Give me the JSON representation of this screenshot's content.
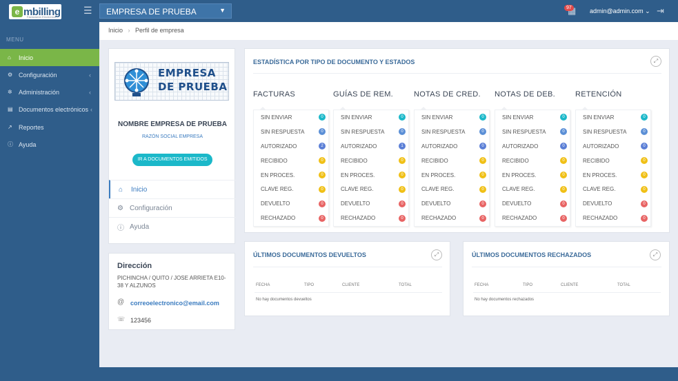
{
  "header": {
    "logo_letter": "e",
    "logo_text": "mbilling",
    "logo_tagline": "Facturación Electrónica",
    "company_select": "EMPRESA DE PRUEBA",
    "notification_count": "97",
    "user_email": "admin@admin.com"
  },
  "sidebar": {
    "menu_label": "MENU",
    "items": [
      {
        "label": "Inicio",
        "icon": "home-icon",
        "active": true
      },
      {
        "label": "Configuración",
        "icon": "cogs-icon"
      },
      {
        "label": "Administración",
        "icon": "gear-icon"
      },
      {
        "label": "Documentos electrónicos",
        "icon": "document-icon"
      },
      {
        "label": "Reportes",
        "icon": "chart-icon"
      },
      {
        "label": "Ayuda",
        "icon": "info-icon"
      }
    ]
  },
  "breadcrumb": {
    "home": "Inicio",
    "current": "Perfil de empresa"
  },
  "profile": {
    "logo_line1": "EMPRESA",
    "logo_line2": "DE PRUEBA",
    "name": "NOMBRE EMPRESA DE PRUEBA",
    "legal_name": "RAZÓN SOCIAL EMPRESA",
    "docs_button": "IR A DOCUMENTOS EMITIDOS",
    "menu": [
      {
        "label": "Inicio",
        "icon": "home-icon"
      },
      {
        "label": "Configuración",
        "icon": "gear-icon"
      },
      {
        "label": "Ayuda",
        "icon": "info-icon"
      }
    ]
  },
  "address": {
    "title": "Dirección",
    "text": "PICHINCHA / QUITO / JOSE ARRIETA E10-38 Y ALZUNOS",
    "email": "correoelectronico@email.com",
    "phone": "123456"
  },
  "stats": {
    "title": "ESTADÍSTICA POR TIPO DE DOCUMENTO Y ESTADOS",
    "status_colors": {
      "SIN ENVIAR": "#1bb8c9",
      "SIN RESPUESTA": "#5b8fd6",
      "AUTORIZADO": "#5b7fd6",
      "RECIBIDO": "#f0c016",
      "EN PROCES.": "#f0c016",
      "CLAVE REG.": "#f0c016",
      "DEVUELTO": "#e86464",
      "RECHAZADO": "#e86464"
    },
    "columns": [
      {
        "title": "FACTURAS",
        "rows": [
          {
            "label": "SIN ENVIAR",
            "count": "0"
          },
          {
            "label": "SIN RESPUESTA",
            "count": "0"
          },
          {
            "label": "AUTORIZADO",
            "count": "2"
          },
          {
            "label": "RECIBIDO",
            "count": "0"
          },
          {
            "label": "EN PROCES.",
            "count": "0"
          },
          {
            "label": "CLAVE REG.",
            "count": "0"
          },
          {
            "label": "DEVUELTO",
            "count": "0"
          },
          {
            "label": "RECHAZADO",
            "count": "0"
          }
        ]
      },
      {
        "title": "GUÍAS DE REM.",
        "rows": [
          {
            "label": "SIN ENVIAR",
            "count": "0"
          },
          {
            "label": "SIN RESPUESTA",
            "count": "0"
          },
          {
            "label": "AUTORIZADO",
            "count": "1"
          },
          {
            "label": "RECIBIDO",
            "count": "0"
          },
          {
            "label": "EN PROCES.",
            "count": "0"
          },
          {
            "label": "CLAVE REG.",
            "count": "0"
          },
          {
            "label": "DEVUELTO",
            "count": "0"
          },
          {
            "label": "RECHAZADO",
            "count": "0"
          }
        ]
      },
      {
        "title": "NOTAS DE CRED.",
        "rows": [
          {
            "label": "SIN ENVIAR",
            "count": "0"
          },
          {
            "label": "SIN RESPUESTA",
            "count": "0"
          },
          {
            "label": "AUTORIZADO",
            "count": "0"
          },
          {
            "label": "RECIBIDO",
            "count": "0"
          },
          {
            "label": "EN PROCES.",
            "count": "0"
          },
          {
            "label": "CLAVE REG.",
            "count": "0"
          },
          {
            "label": "DEVUELTO",
            "count": "0"
          },
          {
            "label": "RECHAZADO",
            "count": "0"
          }
        ]
      },
      {
        "title": "NOTAS DE DEB.",
        "rows": [
          {
            "label": "SIN ENVIAR",
            "count": "0"
          },
          {
            "label": "SIN RESPUESTA",
            "count": "0"
          },
          {
            "label": "AUTORIZADO",
            "count": "0"
          },
          {
            "label": "RECIBIDO",
            "count": "0"
          },
          {
            "label": "EN PROCES.",
            "count": "0"
          },
          {
            "label": "CLAVE REG.",
            "count": "0"
          },
          {
            "label": "DEVUELTO",
            "count": "0"
          },
          {
            "label": "RECHAZADO",
            "count": "0"
          }
        ]
      },
      {
        "title": "RETENCIÓN",
        "rows": [
          {
            "label": "SIN ENVIAR",
            "count": "0"
          },
          {
            "label": "SIN RESPUESTA",
            "count": "0"
          },
          {
            "label": "AUTORIZADO",
            "count": "0"
          },
          {
            "label": "RECIBIDO",
            "count": "0"
          },
          {
            "label": "EN PROCES.",
            "count": "0"
          },
          {
            "label": "CLAVE REG.",
            "count": "0"
          },
          {
            "label": "DEVUELTO",
            "count": "0"
          },
          {
            "label": "RECHAZADO",
            "count": "0"
          }
        ]
      }
    ]
  },
  "returned": {
    "title": "ÚLTIMOS DOCUMENTOS DEVUELTOS",
    "columns": [
      "FECHA",
      "TIPO",
      "CLIENTE",
      "TOTAL"
    ],
    "empty": "No hay documentos devueltos"
  },
  "rejected": {
    "title": "ÚLTIMOS DOCUMENTOS RECHAZADOS",
    "columns": [
      "FECHA",
      "TIPO",
      "CLIENTE",
      "TOTAL"
    ],
    "empty": "No hay documentos rechazados"
  }
}
